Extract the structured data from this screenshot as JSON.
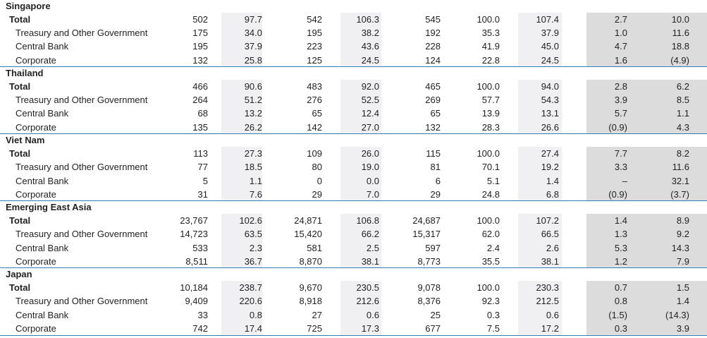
{
  "sections": [
    {
      "name": "Singapore",
      "rows": [
        {
          "label": "Total",
          "cells": [
            "502",
            "97.7",
            "542",
            "106.3",
            "545",
            "100.0",
            "107.4",
            "2.7",
            "10.0"
          ]
        },
        {
          "label": "Treasury and Other Government",
          "cells": [
            "175",
            "34.0",
            "195",
            "38.2",
            "192",
            "35.3",
            "37.9",
            "1.0",
            "11.6"
          ]
        },
        {
          "label": "Central Bank",
          "cells": [
            "195",
            "37.9",
            "223",
            "43.6",
            "228",
            "41.9",
            "45.0",
            "4.7",
            "18.8"
          ]
        },
        {
          "label": "Corporate",
          "cells": [
            "132",
            "25.8",
            "125",
            "24.5",
            "124",
            "22.8",
            "24.5",
            "1.6",
            "(4.9)"
          ]
        }
      ]
    },
    {
      "name": "Thailand",
      "rows": [
        {
          "label": "Total",
          "cells": [
            "466",
            "90.6",
            "483",
            "92.0",
            "465",
            "100.0",
            "94.0",
            "2.8",
            "6.2"
          ]
        },
        {
          "label": "Treasury and Other Government",
          "cells": [
            "264",
            "51.2",
            "276",
            "52.5",
            "269",
            "57.7",
            "54.3",
            "3.9",
            "8.5"
          ]
        },
        {
          "label": "Central Bank",
          "cells": [
            "68",
            "13.2",
            "65",
            "12.4",
            "65",
            "13.9",
            "13.1",
            "5.7",
            "1.1"
          ]
        },
        {
          "label": "Corporate",
          "cells": [
            "135",
            "26.2",
            "142",
            "27.0",
            "132",
            "28.3",
            "26.6",
            "(0.9)",
            "4.3"
          ]
        }
      ]
    },
    {
      "name": "Viet Nam",
      "rows": [
        {
          "label": "Total",
          "cells": [
            "113",
            "27.3",
            "109",
            "26.0",
            "115",
            "100.0",
            "27.4",
            "7.7",
            "8.2"
          ]
        },
        {
          "label": "Treasury and Other Government",
          "cells": [
            "77",
            "18.5",
            "80",
            "19.0",
            "81",
            "70.1",
            "19.2",
            "3.3",
            "11.6"
          ]
        },
        {
          "label": "Central Bank",
          "cells": [
            "5",
            "1.1",
            "0",
            "0.0",
            "6",
            "5.1",
            "1.4",
            "–",
            "32.1"
          ]
        },
        {
          "label": "Corporate",
          "cells": [
            "31",
            "7.6",
            "29",
            "7.0",
            "29",
            "24.8",
            "6.8",
            "(0.9)",
            "(3.7)"
          ]
        }
      ]
    },
    {
      "name": "Emerging East Asia",
      "rows": [
        {
          "label": "Total",
          "cells": [
            "23,767",
            "102.6",
            "24,871",
            "106.8",
            "24,687",
            "100.0",
            "107.2",
            "1.4",
            "8.9"
          ]
        },
        {
          "label": "Treasury and Other Government",
          "cells": [
            "14,723",
            "63.5",
            "15,420",
            "66.2",
            "15,317",
            "62.0",
            "66.5",
            "1.3",
            "9.2"
          ]
        },
        {
          "label": "Central Bank",
          "cells": [
            "533",
            "2.3",
            "581",
            "2.5",
            "597",
            "2.4",
            "2.6",
            "5.3",
            "14.3"
          ]
        },
        {
          "label": "Corporate",
          "cells": [
            "8,511",
            "36.7",
            "8,870",
            "38.1",
            "8,773",
            "35.5",
            "38.1",
            "1.2",
            "7.9"
          ]
        }
      ]
    },
    {
      "name": "Japan",
      "rows": [
        {
          "label": "Total",
          "cells": [
            "10,184",
            "238.7",
            "9,670",
            "230.5",
            "9,078",
            "100.0",
            "230.3",
            "0.7",
            "1.5"
          ]
        },
        {
          "label": "Treasury and Other Government",
          "cells": [
            "9,409",
            "220.6",
            "8,918",
            "212.6",
            "8,376",
            "92.3",
            "212.5",
            "0.8",
            "1.4"
          ]
        },
        {
          "label": "Central Bank",
          "cells": [
            "33",
            "0.8",
            "27",
            "0.6",
            "25",
            "0.3",
            "0.6",
            "(1.5)",
            "(14.3)"
          ]
        },
        {
          "label": "Corporate",
          "cells": [
            "742",
            "17.4",
            "725",
            "17.3",
            "677",
            "7.5",
            "17.2",
            "0.3",
            "3.9"
          ]
        }
      ]
    }
  ]
}
